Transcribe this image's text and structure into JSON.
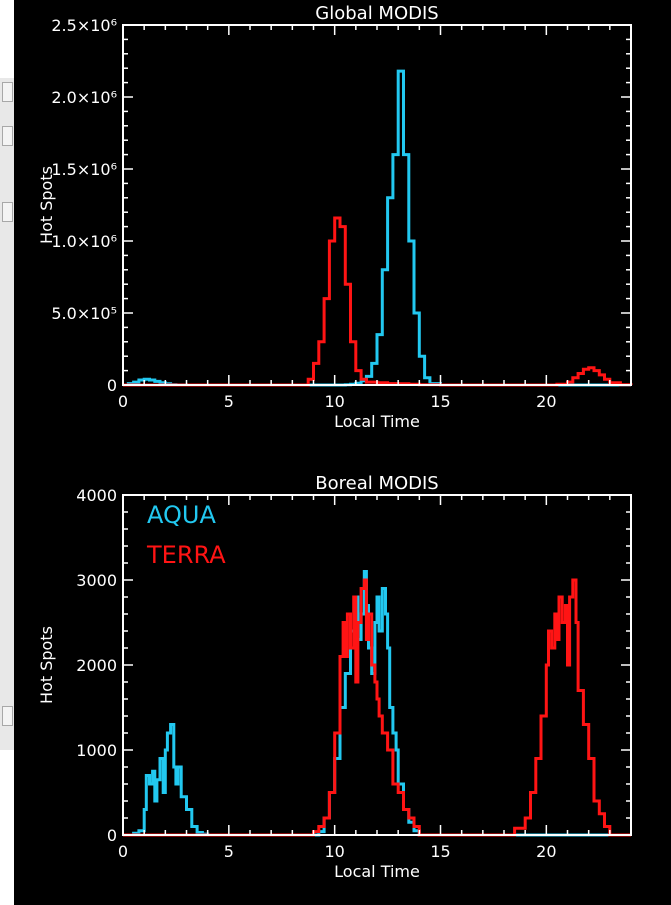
{
  "colors": {
    "background": "#000000",
    "axes": "#ffffff",
    "aqua": "#22c8f0",
    "terra": "#ff1414"
  },
  "chart_data": [
    {
      "type": "line",
      "title": "Global MODIS",
      "xlabel": "Local Time",
      "ylabel": "Hot Spots",
      "xlim": [
        0,
        24
      ],
      "ylim": [
        0,
        2500000
      ],
      "xticks": [
        0,
        5,
        10,
        15,
        20
      ],
      "xtick_labels": [
        "0",
        "5",
        "10",
        "15",
        "20"
      ],
      "yticks": [
        0,
        500000,
        1000000,
        1500000,
        2000000,
        2500000
      ],
      "ytick_labels": [
        "0",
        "5.0×10⁵",
        "1.0×10⁶",
        "1.5×10⁶",
        "2.0×10⁶",
        "2.5×10⁶"
      ],
      "series": [
        {
          "name": "AQUA",
          "color": "#22c8f0",
          "x": [
            0,
            0.25,
            0.5,
            0.75,
            1,
            1.25,
            1.5,
            1.75,
            2,
            2.25,
            2.5,
            3,
            4,
            5,
            6,
            7,
            8,
            9,
            10,
            10.5,
            10.75,
            11,
            11.25,
            11.5,
            11.75,
            12,
            12.25,
            12.5,
            12.75,
            13,
            13.25,
            13.5,
            13.75,
            14,
            14.25,
            14.5,
            15,
            16,
            17,
            18,
            19,
            20,
            21,
            22,
            23,
            24
          ],
          "y": [
            0,
            10000,
            20000,
            35000,
            40000,
            35000,
            25000,
            15000,
            8000,
            3000,
            1000,
            0,
            0,
            0,
            0,
            0,
            0,
            0,
            0,
            2000,
            5000,
            12000,
            30000,
            60000,
            150000,
            350000,
            800000,
            1300000,
            1600000,
            2180000,
            1600000,
            1000000,
            500000,
            200000,
            50000,
            10000,
            0,
            0,
            0,
            0,
            0,
            0,
            0,
            0,
            0,
            0
          ]
        },
        {
          "name": "TERRA",
          "color": "#ff1414",
          "x": [
            0,
            1,
            2,
            3,
            4,
            5,
            6,
            7,
            8,
            8.75,
            9,
            9.25,
            9.5,
            9.75,
            10,
            10.25,
            10.5,
            10.75,
            11,
            11.25,
            11.5,
            12,
            12.5,
            13,
            13.5,
            14,
            15,
            16,
            17,
            18,
            19,
            20,
            20.5,
            21,
            21.25,
            21.5,
            21.75,
            22,
            22.25,
            22.5,
            22.75,
            23,
            23.5,
            24
          ],
          "y": [
            0,
            0,
            0,
            0,
            0,
            0,
            0,
            0,
            0,
            40000,
            150000,
            300000,
            600000,
            1000000,
            1160000,
            1100000,
            700000,
            300000,
            100000,
            40000,
            20000,
            15000,
            10000,
            8000,
            5000,
            2000,
            0,
            0,
            0,
            0,
            0,
            0,
            5000,
            20000,
            50000,
            80000,
            110000,
            120000,
            100000,
            70000,
            40000,
            15000,
            2000,
            0
          ]
        }
      ]
    },
    {
      "type": "line",
      "title": "Boreal MODIS",
      "xlabel": "Local Time",
      "ylabel": "Hot Spots",
      "xlim": [
        0,
        24
      ],
      "ylim": [
        0,
        4000
      ],
      "xticks": [
        0,
        5,
        10,
        15,
        20
      ],
      "xtick_labels": [
        "0",
        "5",
        "10",
        "15",
        "20"
      ],
      "yticks": [
        0,
        1000,
        2000,
        3000,
        4000
      ],
      "ytick_labels": [
        "0",
        "1000",
        "2000",
        "3000",
        "4000"
      ],
      "legend": [
        {
          "label": "AQUA",
          "color": "#22c8f0"
        },
        {
          "label": "TERRA",
          "color": "#ff1414"
        }
      ],
      "series": [
        {
          "name": "AQUA",
          "color": "#22c8f0",
          "x": [
            0,
            0.5,
            0.75,
            1,
            1.1,
            1.25,
            1.4,
            1.5,
            1.6,
            1.75,
            1.9,
            2,
            2.1,
            2.25,
            2.4,
            2.5,
            2.6,
            2.75,
            3,
            3.25,
            3.5,
            3.75,
            4,
            5,
            6,
            7,
            8,
            9,
            9.25,
            9.5,
            9.75,
            10,
            10.25,
            10.5,
            10.75,
            11,
            11.1,
            11.25,
            11.4,
            11.5,
            11.6,
            11.75,
            11.9,
            12,
            12.1,
            12.25,
            12.4,
            12.5,
            12.6,
            12.75,
            12.9,
            13,
            13.25,
            13.5,
            13.75,
            14,
            15,
            16,
            17,
            18,
            19,
            20,
            21,
            22,
            23,
            24
          ],
          "y": [
            0,
            20,
            50,
            300,
            700,
            600,
            750,
            400,
            650,
            900,
            500,
            1000,
            1200,
            1300,
            800,
            600,
            800,
            450,
            300,
            100,
            30,
            10,
            0,
            0,
            0,
            0,
            0,
            0,
            40,
            200,
            500,
            900,
            1500,
            1900,
            2400,
            2800,
            2300,
            2600,
            3100,
            2700,
            2200,
            1900,
            2500,
            2800,
            2400,
            2900,
            2600,
            2200,
            1500,
            1200,
            1000,
            600,
            300,
            150,
            50,
            0,
            0,
            0,
            0,
            0,
            0,
            0,
            0,
            0,
            0,
            0
          ]
        },
        {
          "name": "TERRA",
          "color": "#ff1414",
          "x": [
            0,
            1,
            2,
            3,
            4,
            5,
            6,
            7,
            8,
            9,
            9.25,
            9.5,
            9.75,
            10,
            10.25,
            10.4,
            10.5,
            10.6,
            10.75,
            10.9,
            11,
            11.1,
            11.25,
            11.4,
            11.5,
            11.6,
            11.75,
            11.9,
            12,
            12.1,
            12.25,
            12.5,
            12.75,
            13,
            13.25,
            13.5,
            13.75,
            14,
            15,
            16,
            17,
            18,
            18.5,
            19,
            19.25,
            19.5,
            19.75,
            20,
            20.1,
            20.25,
            20.4,
            20.5,
            20.6,
            20.75,
            20.9,
            21,
            21.1,
            21.25,
            21.4,
            21.5,
            21.75,
            22,
            22.25,
            22.5,
            22.75,
            23,
            23.25,
            24
          ],
          "y": [
            0,
            0,
            0,
            0,
            0,
            0,
            0,
            0,
            0,
            40,
            100,
            200,
            500,
            1200,
            2100,
            2500,
            2100,
            2600,
            2200,
            2800,
            1800,
            2500,
            2900,
            3000,
            2300,
            2600,
            2000,
            1800,
            1600,
            1400,
            1200,
            1000,
            600,
            500,
            300,
            200,
            100,
            0,
            0,
            0,
            0,
            0,
            80,
            200,
            500,
            900,
            1400,
            2000,
            2400,
            2200,
            2600,
            2300,
            2800,
            2500,
            2700,
            2000,
            2800,
            3000,
            2500,
            1700,
            1300,
            900,
            400,
            250,
            100,
            0,
            0,
            0
          ]
        }
      ]
    }
  ]
}
